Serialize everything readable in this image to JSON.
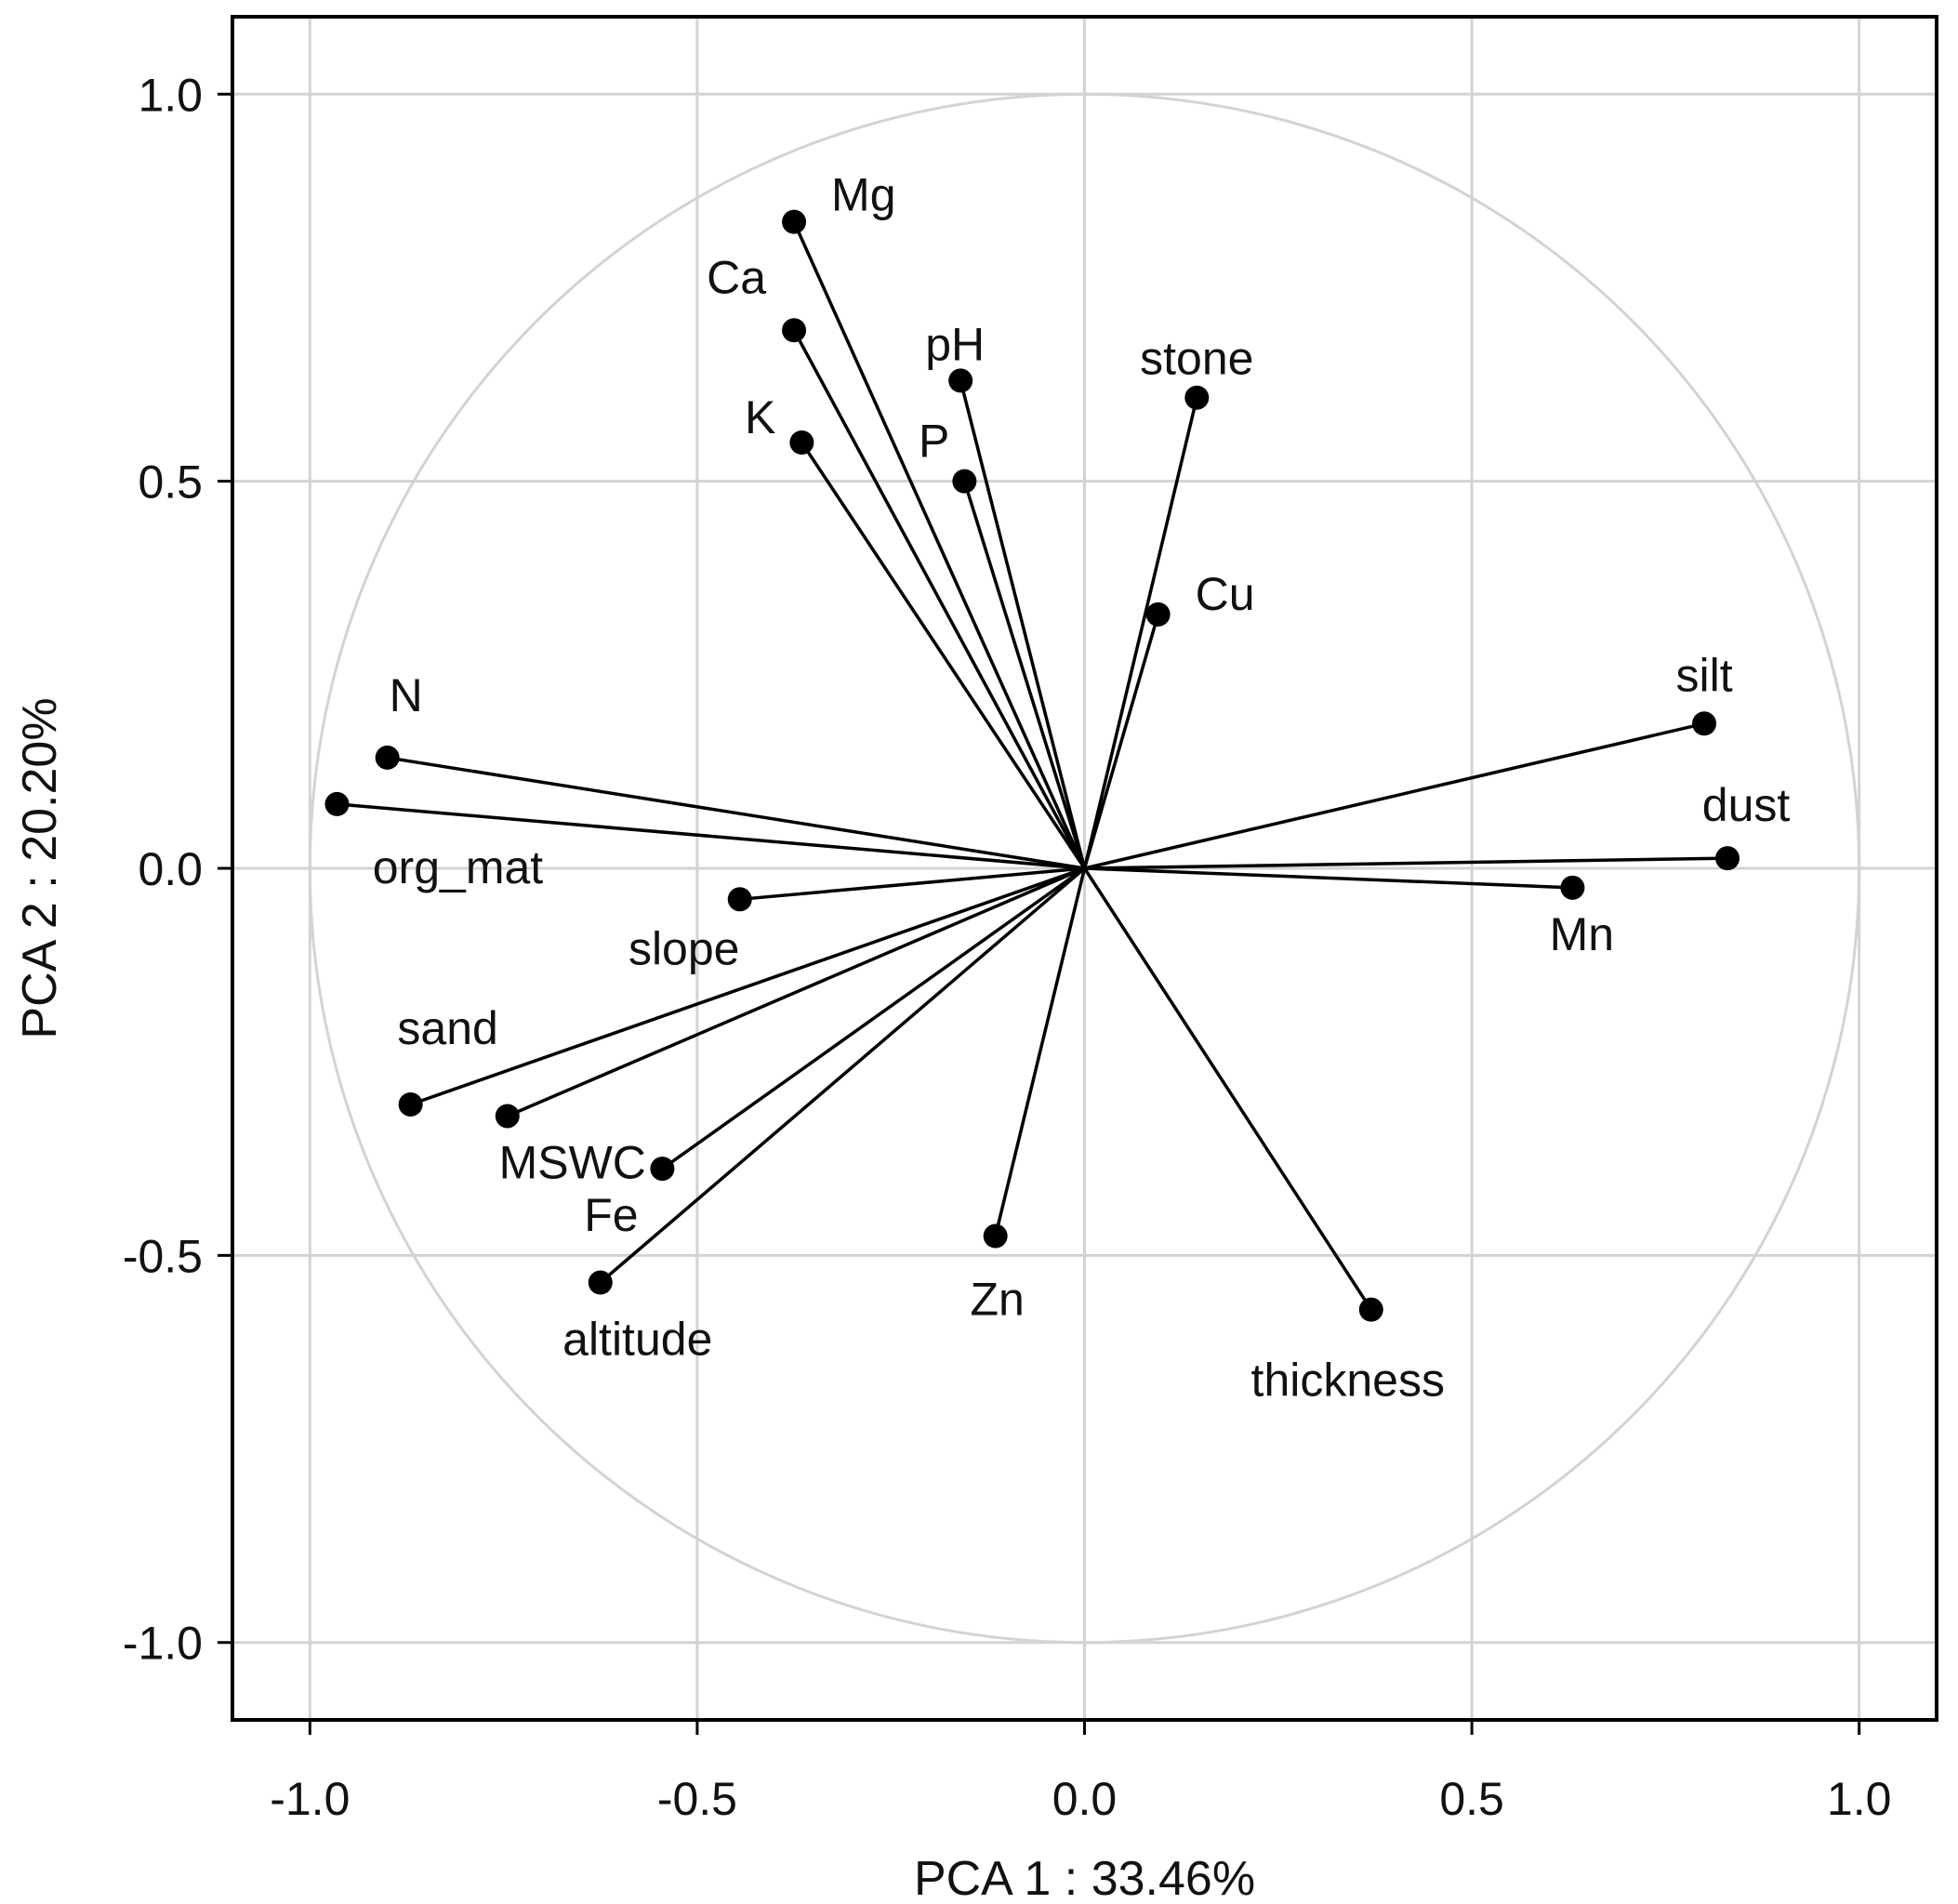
{
  "chart_data": {
    "type": "scatter",
    "subtype": "pca-loading-circle",
    "xlabel": "PCA 1 : 33.46%",
    "ylabel": "PCA 2 : 20.20%",
    "xlim": [
      -1.1,
      1.1
    ],
    "ylim": [
      -1.1,
      1.1
    ],
    "xticks": [
      -1.0,
      -0.5,
      0.0,
      0.5,
      1.0
    ],
    "yticks": [
      -1.0,
      -0.5,
      0.0,
      0.5,
      1.0
    ],
    "xtick_labels": [
      "-1.0",
      "-0.5",
      "0.0",
      "0.5",
      "1.0"
    ],
    "ytick_labels": [
      "-1.0",
      "-0.5",
      "0.0",
      "0.5",
      "1.0"
    ],
    "grid": true,
    "unit_circle": true,
    "colors": {
      "axes": "#000000",
      "grid": "#d3d3d3",
      "circle": "#d3d3d3",
      "vectors": "#000000",
      "text": "#111111"
    },
    "variables": [
      {
        "name": "Mg",
        "x": -0.375,
        "y": 0.835
      },
      {
        "name": "Ca",
        "x": -0.375,
        "y": 0.695
      },
      {
        "name": "pH",
        "x": -0.16,
        "y": 0.63
      },
      {
        "name": "K",
        "x": -0.365,
        "y": 0.55
      },
      {
        "name": "P",
        "x": -0.155,
        "y": 0.5
      },
      {
        "name": "stone",
        "x": 0.145,
        "y": 0.608
      },
      {
        "name": "Cu",
        "x": 0.095,
        "y": 0.328
      },
      {
        "name": "N",
        "x": -0.9,
        "y": 0.143
      },
      {
        "name": "org_mat",
        "x": -0.965,
        "y": 0.083
      },
      {
        "name": "silt",
        "x": 0.8,
        "y": 0.187
      },
      {
        "name": "dust",
        "x": 0.83,
        "y": 0.013
      },
      {
        "name": "Mn",
        "x": 0.63,
        "y": -0.025
      },
      {
        "name": "slope",
        "x": -0.445,
        "y": -0.04
      },
      {
        "name": "sand",
        "x": -0.87,
        "y": -0.305
      },
      {
        "name": "MSWC",
        "x": -0.745,
        "y": -0.32
      },
      {
        "name": "Fe",
        "x": -0.545,
        "y": -0.388
      },
      {
        "name": "altitude",
        "x": -0.625,
        "y": -0.535
      },
      {
        "name": "Zn",
        "x": -0.115,
        "y": -0.475
      },
      {
        "name": "thickness",
        "x": 0.37,
        "y": -0.57
      }
    ]
  }
}
